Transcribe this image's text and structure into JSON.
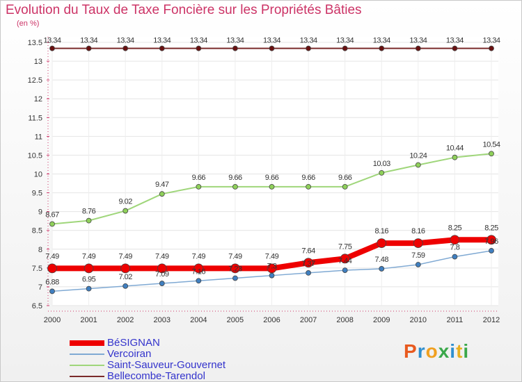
{
  "title": "Evolution du Taux de Taxe Foncière sur les Propriétés Bâties",
  "unit_label": "(en %)",
  "logo": {
    "text": "Proxiti",
    "colors": [
      "#e85a1f",
      "#2f8fcf",
      "#f0a020",
      "#3aa84a",
      "#2f8fcf",
      "#e8b020",
      "#3aa84a"
    ]
  },
  "chart_data": {
    "type": "line",
    "title": "Evolution du Taux de Taxe Foncière sur les Propriétés Bâties",
    "ylabel": "(en %)",
    "x": [
      "2000",
      "2001",
      "2002",
      "2003",
      "2004",
      "2005",
      "2006",
      "2007",
      "2008",
      "2009",
      "2010",
      "2011",
      "2012"
    ],
    "ylim": [
      6.5,
      13.5
    ],
    "yticks": [
      "6.5",
      "7",
      "7.5",
      "8",
      "8.5",
      "9",
      "9.5",
      "10",
      "10.5",
      "11",
      "11.5",
      "12",
      "12.5",
      "13",
      "13.5"
    ],
    "legend_position": "bottom-left",
    "series": [
      {
        "name": "Bellecombe-Tarendol",
        "color": "#7a2a2a",
        "values": [
          13.34,
          13.34,
          13.34,
          13.34,
          13.34,
          13.34,
          13.34,
          13.34,
          13.34,
          13.34,
          13.34,
          13.34,
          13.34
        ],
        "labels": [
          "13.34",
          "13.34",
          "13.34",
          "13.34",
          "13.34",
          "13.34",
          "13.34",
          "13.34",
          "13.34",
          "13.34",
          "13.34",
          "13.34",
          "13.34"
        ]
      },
      {
        "name": "Saint-Sauveur-Gouvernet",
        "color": "#9fd67a",
        "values": [
          8.67,
          8.76,
          9.02,
          9.47,
          9.66,
          9.66,
          9.66,
          9.66,
          9.66,
          10.03,
          10.24,
          10.44,
          10.54
        ],
        "labels": [
          "8.67",
          "8.76",
          "9.02",
          "9.47",
          "9.66",
          "9.66",
          "9.66",
          "9.66",
          "9.66",
          "10.03",
          "10.24",
          "10.44",
          "10.54"
        ]
      },
      {
        "name": "Vercoiran",
        "color": "#7fa9d3",
        "values": [
          6.88,
          6.95,
          7.02,
          7.09,
          7.16,
          7.23,
          7.3,
          7.37,
          7.44,
          7.48,
          7.59,
          7.8,
          7.96
        ],
        "labels": [
          "6.88",
          "6.95",
          "7.02",
          "7.09",
          "7.16",
          "7.23",
          "7.3",
          "7.37",
          "7.44",
          "7.48",
          "7.59",
          "7.8",
          "7.96"
        ]
      },
      {
        "name": "BéSIGNAN",
        "color": "#ee0000",
        "values": [
          7.49,
          7.49,
          7.49,
          7.49,
          7.49,
          7.49,
          7.49,
          7.64,
          7.75,
          8.16,
          8.16,
          8.25,
          8.25
        ],
        "labels": [
          "7.49",
          "7.49",
          "7.49",
          "7.49",
          "7.49",
          "7.49",
          "7.49",
          "7.64",
          "7.75",
          "8.16",
          "8.16",
          "8.25",
          "8.25"
        ]
      }
    ],
    "legend_order": [
      "BéSIGNAN",
      "Vercoiran",
      "Saint-Sauveur-Gouvernet",
      "Bellecombe-Tarendol"
    ]
  }
}
